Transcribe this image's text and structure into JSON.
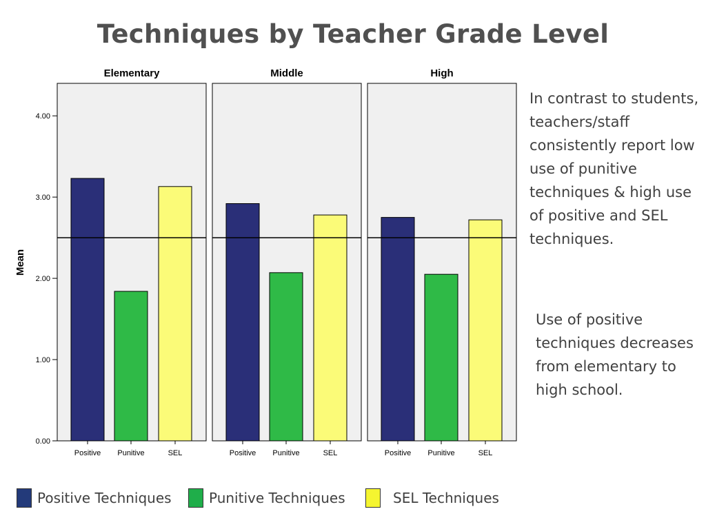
{
  "slide": {
    "title": "Techniques by Teacher Grade Level",
    "notes": [
      "In contrast to students, teachers/staff consistently report low use of punitive techniques & high use of positive and SEL techniques.",
      "Use of positive techniques decreases from elementary to high school."
    ]
  },
  "legend": [
    {
      "label": "Positive Techniques",
      "color": "#233a7a"
    },
    {
      "label": "Punitive Techniques",
      "color": "#1fae4a"
    },
    {
      "label": "SEL Techniques",
      "color": "#f5f530"
    }
  ],
  "chart_data": {
    "type": "bar",
    "ylabel": "Mean",
    "ylim": [
      0,
      4.4
    ],
    "yticks": [
      "0.00",
      "1.00",
      "2.00",
      "3.00",
      "4.00"
    ],
    "reference_line": 2.5,
    "categories": [
      "Positive",
      "Punitive",
      "SEL"
    ],
    "bar_colors": [
      "#2a2f78",
      "#2fba47",
      "#fbfb78"
    ],
    "panel_background": "#f0f0f0",
    "panels": [
      {
        "name": "Elementary",
        "values": [
          3.23,
          1.84,
          3.13
        ]
      },
      {
        "name": "Middle",
        "values": [
          2.92,
          2.07,
          2.78
        ]
      },
      {
        "name": "High",
        "values": [
          2.75,
          2.05,
          2.72
        ]
      }
    ]
  }
}
